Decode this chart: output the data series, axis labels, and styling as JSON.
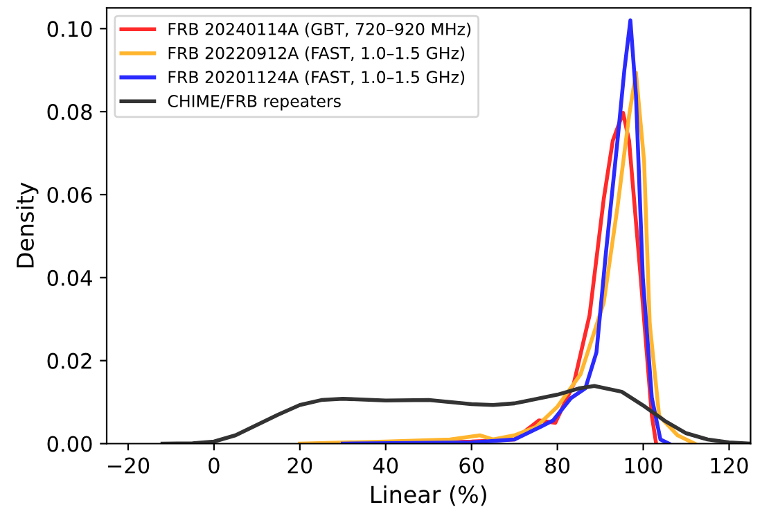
{
  "chart_data": {
    "type": "line",
    "xlabel": "Linear (%)",
    "ylabel": "Density",
    "xlim": [
      -25,
      125
    ],
    "ylim": [
      0,
      0.105
    ],
    "xticks": [
      -20,
      0,
      20,
      40,
      60,
      80,
      100,
      120
    ],
    "yticks": [
      {
        "value": 0,
        "label": "0.00"
      },
      {
        "value": 0.02,
        "label": "0.02"
      },
      {
        "value": 0.04,
        "label": "0.04"
      },
      {
        "value": 0.06,
        "label": "0.06"
      },
      {
        "value": 0.08,
        "label": "0.08"
      },
      {
        "value": 0.1,
        "label": "0.10"
      }
    ],
    "grid": false,
    "legend": "top left",
    "marker": "none",
    "line_style": "solid",
    "series": [
      {
        "name": "FRB 20240114A (GBT, 720–920 MHz)",
        "color": "#ff2a2a",
        "x": [
          40,
          60,
          70,
          75.7,
          79.5,
          83.8,
          87.5,
          90.8,
          92.9,
          95.3,
          96.7,
          99.4,
          102,
          103
        ],
        "values": [
          0,
          0.0005,
          0.001,
          0.0056,
          0.005,
          0.0144,
          0.031,
          0.059,
          0.073,
          0.0797,
          0.073,
          0.04,
          0.0067,
          0
        ]
      },
      {
        "name": "FRB 20220912A (FAST, 1.0–1.5 GHz)",
        "color": "#ffb52e",
        "x": [
          20,
          40,
          55,
          62,
          65,
          70,
          75,
          80,
          85.4,
          90.8,
          94,
          96.7,
          98.3,
          100.2,
          101.5,
          103.7,
          108,
          112
        ],
        "values": [
          0,
          0.0005,
          0.001,
          0.002,
          0.001,
          0.002,
          0.004,
          0.0089,
          0.0167,
          0.034,
          0.057,
          0.079,
          0.0894,
          0.068,
          0.029,
          0.0067,
          0.002,
          0
        ]
      },
      {
        "name": "FRB 20201124A (FAST, 1.0–1.5 GHz)",
        "color": "#2a2aff",
        "x": [
          30,
          60,
          70,
          76,
          79,
          83.2,
          86.5,
          89.1,
          91.3,
          94,
          95.6,
          97,
          98.3,
          99.9,
          102,
          104,
          106
        ],
        "values": [
          0,
          0.0003,
          0.001,
          0.004,
          0.0056,
          0.011,
          0.0133,
          0.022,
          0.046,
          0.073,
          0.09,
          0.102,
          0.084,
          0.04,
          0.011,
          0.001,
          0
        ]
      },
      {
        "name": "CHIME/FRB repeaters",
        "color": "#333333",
        "x": [
          -12,
          -5,
          0,
          5,
          10,
          15,
          20,
          25,
          30,
          40,
          50,
          60,
          65,
          70,
          80,
          85,
          88.6,
          95,
          100.4,
          105,
          110,
          115,
          120,
          125
        ],
        "values": [
          0,
          0.0001,
          0.0005,
          0.002,
          0.0045,
          0.007,
          0.0093,
          0.0105,
          0.0108,
          0.0104,
          0.0105,
          0.0095,
          0.0093,
          0.0097,
          0.0118,
          0.0133,
          0.0139,
          0.0125,
          0.0089,
          0.0055,
          0.0025,
          0.001,
          0.0003,
          0
        ]
      }
    ]
  }
}
